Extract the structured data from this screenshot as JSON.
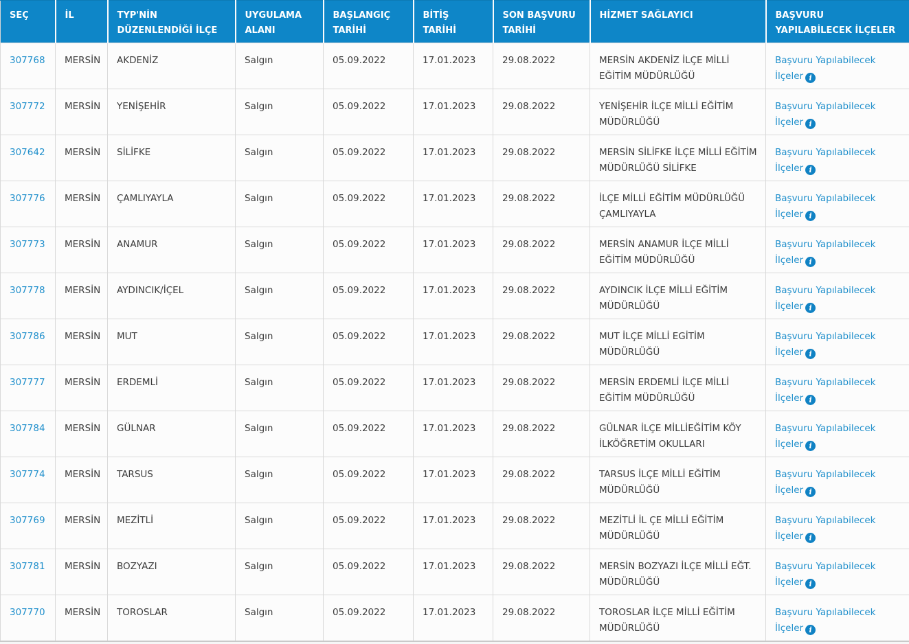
{
  "table": {
    "columns": [
      "SEÇ",
      "İL",
      "TYP'NİN\nDÜZENLENDİĞİ İLÇE",
      "UYGULAMA\nALANI",
      "BAŞLANGIÇ\nTARİHİ",
      "BİTİŞ\nTARİHİ",
      "SON BAŞVURU\nTARİHİ",
      "HİZMET SAĞLAYICI",
      "BAŞVURU\nYAPILABİLECEK İLÇELER"
    ],
    "link_label": "Başvuru Yapılabilecek İlçeler",
    "info_icon_glyph": "i",
    "rows": [
      {
        "id": "307768",
        "il": "MERSİN",
        "ilce": "AKDENİZ",
        "alan": "Salgın",
        "baslangic": "05.09.2022",
        "bitis": "17.01.2023",
        "son_basvuru": "29.08.2022",
        "saglayici": "MERSİN AKDENİZ İLÇE MİLLİ EĞİTİM MÜDÜRLÜĞÜ"
      },
      {
        "id": "307772",
        "il": "MERSİN",
        "ilce": "YENİŞEHİR",
        "alan": "Salgın",
        "baslangic": "05.09.2022",
        "bitis": "17.01.2023",
        "son_basvuru": "29.08.2022",
        "saglayici": "YENİŞEHİR İLÇE MİLLİ EĞİTİM MÜDÜRLÜĞÜ"
      },
      {
        "id": "307642",
        "il": "MERSİN",
        "ilce": "SİLİFKE",
        "alan": "Salgın",
        "baslangic": "05.09.2022",
        "bitis": "17.01.2023",
        "son_basvuru": "29.08.2022",
        "saglayici": "MERSİN SİLİFKE İLÇE MİLLİ EĞİTİM MÜDÜRLÜĞÜ SİLİFKE"
      },
      {
        "id": "307776",
        "il": "MERSİN",
        "ilce": "ÇAMLIYAYLA",
        "alan": "Salgın",
        "baslangic": "05.09.2022",
        "bitis": "17.01.2023",
        "son_basvuru": "29.08.2022",
        "saglayici": "İLÇE MİLLİ EĞİTİM MÜDÜRLÜĞÜ ÇAMLIYAYLA"
      },
      {
        "id": "307773",
        "il": "MERSİN",
        "ilce": "ANAMUR",
        "alan": "Salgın",
        "baslangic": "05.09.2022",
        "bitis": "17.01.2023",
        "son_basvuru": "29.08.2022",
        "saglayici": "MERSİN ANAMUR İLÇE MİLLİ EĞİTİM MÜDÜRLÜĞÜ"
      },
      {
        "id": "307778",
        "il": "MERSİN",
        "ilce": "AYDINCIK/İÇEL",
        "alan": "Salgın",
        "baslangic": "05.09.2022",
        "bitis": "17.01.2023",
        "son_basvuru": "29.08.2022",
        "saglayici": "AYDINCIK İLÇE MİLLİ EĞİTİM MÜDÜRLÜĞÜ"
      },
      {
        "id": "307786",
        "il": "MERSİN",
        "ilce": "MUT",
        "alan": "Salgın",
        "baslangic": "05.09.2022",
        "bitis": "17.01.2023",
        "son_basvuru": "29.08.2022",
        "saglayici": "MUT İLÇE MİLLİ EGİTİM MÜDÜRLÜĞÜ"
      },
      {
        "id": "307777",
        "il": "MERSİN",
        "ilce": "ERDEMLİ",
        "alan": "Salgın",
        "baslangic": "05.09.2022",
        "bitis": "17.01.2023",
        "son_basvuru": "29.08.2022",
        "saglayici": "MERSİN ERDEMLİ İLÇE MİLLİ EĞİTİM MÜDÜRLÜĞÜ"
      },
      {
        "id": "307784",
        "il": "MERSİN",
        "ilce": "GÜLNAR",
        "alan": "Salgın",
        "baslangic": "05.09.2022",
        "bitis": "17.01.2023",
        "son_basvuru": "29.08.2022",
        "saglayici": "GÜLNAR İLÇE MİLLİEĞİTİM KÖY İLKÖĞRETİM OKULLARI"
      },
      {
        "id": "307774",
        "il": "MERSİN",
        "ilce": "TARSUS",
        "alan": "Salgın",
        "baslangic": "05.09.2022",
        "bitis": "17.01.2023",
        "son_basvuru": "29.08.2022",
        "saglayici": "TARSUS İLÇE MİLLİ EĞİTİM MÜDÜRLÜĞÜ"
      },
      {
        "id": "307769",
        "il": "MERSİN",
        "ilce": "MEZİTLİ",
        "alan": "Salgın",
        "baslangic": "05.09.2022",
        "bitis": "17.01.2023",
        "son_basvuru": "29.08.2022",
        "saglayici": "MEZİTLİ İL ÇE MİLLİ EĞİTİM MÜDÜRLÜĞÜ"
      },
      {
        "id": "307781",
        "il": "MERSİN",
        "ilce": "BOZYAZI",
        "alan": "Salgın",
        "baslangic": "05.09.2022",
        "bitis": "17.01.2023",
        "son_basvuru": "29.08.2022",
        "saglayici": "MERSİN BOZYAZI İLÇE MİLLİ EĞT. MÜDÜRLÜĞÜ"
      },
      {
        "id": "307770",
        "il": "MERSİN",
        "ilce": "TOROSLAR",
        "alan": "Salgın",
        "baslangic": "05.09.2022",
        "bitis": "17.01.2023",
        "son_basvuru": "29.08.2022",
        "saglayici": "TOROSLAR İLÇE MİLLİ EĞİTİM MÜDÜRLÜĞÜ"
      }
    ]
  },
  "colors": {
    "header_bg": "#0e86c8",
    "header_text": "#ffffff",
    "link": "#2190cc",
    "body_text": "#3c3c3c",
    "border": "#d9d9d9",
    "row_bg": "#fcfcfc",
    "page_bg": "#f6f6f6",
    "info_icon_bg": "#1082c4"
  }
}
